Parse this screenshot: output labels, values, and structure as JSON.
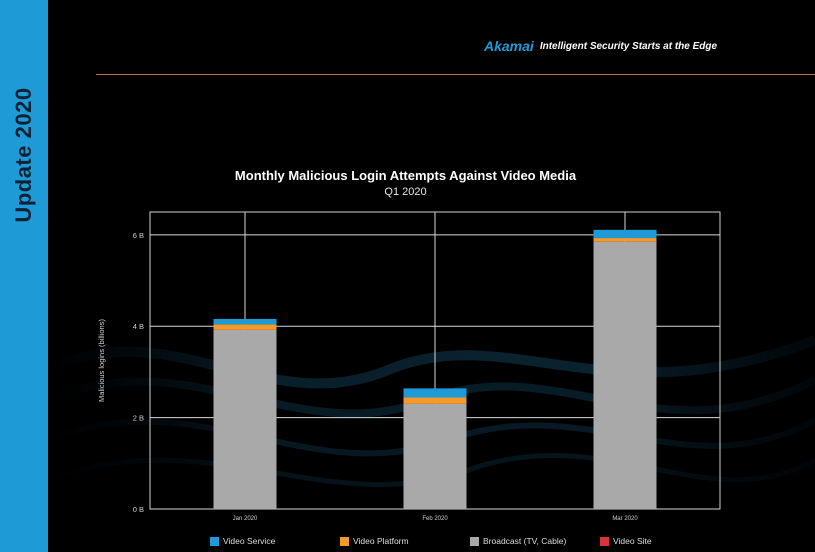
{
  "sidebar": {
    "title": "Update 2020"
  },
  "header": {
    "logo_text": "Akamai",
    "tagline": "Intelligent Security Starts at the Edge"
  },
  "colors": {
    "side_band": "#1e9bd7",
    "rule": "#c8733a",
    "video_service": "#1e9bd7",
    "video_platform": "#f39a2a",
    "broadcast": "#a9a9a9",
    "video_site": "#d8343a"
  },
  "chart_data": {
    "type": "bar",
    "stacked": true,
    "title": "Monthly Malicious Login Attempts Against Video Media",
    "subtitle": "Q1 2020",
    "xlabel": "",
    "ylabel": "Malicious logins (billions)",
    "categories": [
      "Jan 2020",
      "Feb 2020",
      "Mar 2020"
    ],
    "yticks": [
      "0 B",
      "2 B",
      "4 B",
      "6 B"
    ],
    "ytick_values": [
      0,
      2,
      4,
      6
    ],
    "ylim": [
      0,
      6.5
    ],
    "grid": true,
    "legend_position": "bottom",
    "series": [
      {
        "name": "Broadcast (TV, Cable)",
        "color": "#a9a9a9",
        "values": [
          3.92,
          2.3,
          5.85
        ]
      },
      {
        "name": "Video Platform",
        "color": "#f39a2a",
        "values": [
          0.12,
          0.14,
          0.08
        ]
      },
      {
        "name": "Video Service",
        "color": "#1e9bd7",
        "values": [
          0.12,
          0.2,
          0.18
        ]
      },
      {
        "name": "Video Site",
        "color": "#d8343a",
        "values": [
          0.0,
          0.0,
          0.0
        ]
      }
    ]
  },
  "legend": [
    {
      "label": "Video Service",
      "color": "#1e9bd7"
    },
    {
      "label": "Video Platform",
      "color": "#f39a2a"
    },
    {
      "label": "Broadcast (TV, Cable)",
      "color": "#a9a9a9"
    },
    {
      "label": "Video Site",
      "color": "#d8343a"
    }
  ]
}
